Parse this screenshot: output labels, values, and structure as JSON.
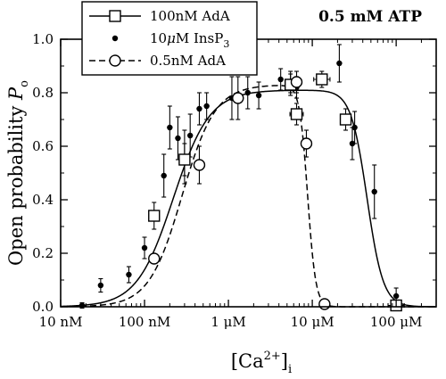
{
  "chart_data": {
    "type": "scatter",
    "title": "0.5 mM ATP",
    "xlabel": "[Ca2+]i",
    "xlabel_parts": {
      "base": "[Ca",
      "sup": "2+",
      "close": "]",
      "sub": "i"
    },
    "ylabel": "Open probability Po",
    "ylabel_parts": {
      "base": "Open probability ",
      "italic": "P",
      "sub": "o"
    },
    "x_scale": "log",
    "xlim": [
      0.01,
      300
    ],
    "ylim": [
      0.0,
      1.0
    ],
    "x_ticks": [
      {
        "value": 0.01,
        "label": "10 nM"
      },
      {
        "value": 0.1,
        "label": "100 nM"
      },
      {
        "value": 1,
        "label": "1 μM"
      },
      {
        "value": 10,
        "label": "10 μM"
      },
      {
        "value": 100,
        "label": "100 μM"
      }
    ],
    "y_ticks": [
      {
        "value": 0.0,
        "label": "0.0"
      },
      {
        "value": 0.2,
        "label": "0.2"
      },
      {
        "value": 0.4,
        "label": "0.4"
      },
      {
        "value": 0.6,
        "label": "0.6"
      },
      {
        "value": 0.8,
        "label": "0.8"
      },
      {
        "value": 1.0,
        "label": "1.0"
      }
    ],
    "x_unit": "μM",
    "legend_position": "top-left",
    "legend": [
      {
        "key": "adaHigh",
        "prefix": "100nM AdA",
        "suffix": "",
        "sub": "",
        "marker": "square",
        "line": "solid"
      },
      {
        "key": "insp3",
        "prefix": "10",
        "mu": "μ",
        "mid": "M InsP",
        "sub": "3",
        "marker": "dot",
        "line": "none"
      },
      {
        "key": "adaLow",
        "prefix": "0.5nM AdA",
        "suffix": "",
        "sub": "",
        "marker": "circle",
        "line": "dashed"
      }
    ],
    "series": [
      {
        "key": "insp3",
        "marker": "dot",
        "points": [
          {
            "x": 0.018,
            "y": 0.005,
            "err": 0.01
          },
          {
            "x": 0.03,
            "y": 0.08,
            "err": 0.025
          },
          {
            "x": 0.065,
            "y": 0.12,
            "err": 0.03
          },
          {
            "x": 0.1,
            "y": 0.22,
            "err": 0.04
          },
          {
            "x": 0.17,
            "y": 0.49,
            "err": 0.08
          },
          {
            "x": 0.2,
            "y": 0.67,
            "err": 0.08
          },
          {
            "x": 0.25,
            "y": 0.63,
            "err": 0.08
          },
          {
            "x": 0.3,
            "y": 0.56,
            "err": 0.1
          },
          {
            "x": 0.35,
            "y": 0.64,
            "err": 0.08
          },
          {
            "x": 0.45,
            "y": 0.74,
            "err": 0.06
          },
          {
            "x": 0.55,
            "y": 0.75,
            "err": 0.05
          },
          {
            "x": 1.1,
            "y": 0.78,
            "err": 0.08
          },
          {
            "x": 1.7,
            "y": 0.8,
            "err": 0.06
          },
          {
            "x": 2.3,
            "y": 0.79,
            "err": 0.05
          },
          {
            "x": 4.2,
            "y": 0.85,
            "err": 0.04
          },
          {
            "x": 5.5,
            "y": 0.84,
            "err": 0.04
          },
          {
            "x": 6.5,
            "y": 0.82,
            "err": 0.04
          },
          {
            "x": 21,
            "y": 0.91,
            "err": 0.07
          },
          {
            "x": 30,
            "y": 0.61,
            "err": 0.06
          },
          {
            "x": 32,
            "y": 0.67,
            "err": 0.06
          },
          {
            "x": 55,
            "y": 0.43,
            "err": 0.1
          },
          {
            "x": 100,
            "y": 0.04,
            "err": 0.03
          }
        ]
      },
      {
        "key": "adaHigh",
        "marker": "square",
        "points": [
          {
            "x": 0.13,
            "y": 0.34,
            "err": 0.05,
            "xerr": 1.15
          },
          {
            "x": 0.3,
            "y": 0.55,
            "err": 0.06,
            "xerr": 1.15
          },
          {
            "x": 5.5,
            "y": 0.83,
            "err": 0.04,
            "xerr": 1.15
          },
          {
            "x": 6.5,
            "y": 0.72,
            "err": 0.04,
            "xerr": 1.2
          },
          {
            "x": 13,
            "y": 0.85,
            "err": 0.03,
            "xerr": 1.25
          },
          {
            "x": 25,
            "y": 0.7,
            "err": 0.04,
            "xerr": 1.15
          },
          {
            "x": 100,
            "y": 0.005,
            "err": 0.01,
            "xerr": 1.25
          }
        ]
      },
      {
        "key": "adaLow",
        "marker": "circle",
        "points": [
          {
            "x": 0.13,
            "y": 0.18,
            "err": 0.0
          },
          {
            "x": 0.45,
            "y": 0.53,
            "err": 0.07
          },
          {
            "x": 1.3,
            "y": 0.78,
            "err": 0.08
          },
          {
            "x": 6.5,
            "y": 0.84,
            "err": 0.04
          },
          {
            "x": 8.5,
            "y": 0.61,
            "err": 0.05
          },
          {
            "x": 14,
            "y": 0.01,
            "err": 0.0
          }
        ]
      }
    ],
    "fits": [
      {
        "key": "adaHigh",
        "line": "solid",
        "pmax": 0.81,
        "ka": 0.22,
        "na": 2.0,
        "ki": 45,
        "ni": 4.5
      },
      {
        "key": "adaLow",
        "line": "dashed",
        "pmax": 0.83,
        "ka": 0.28,
        "na": 2.2,
        "ki": 8.8,
        "ni": 9.0
      }
    ]
  }
}
